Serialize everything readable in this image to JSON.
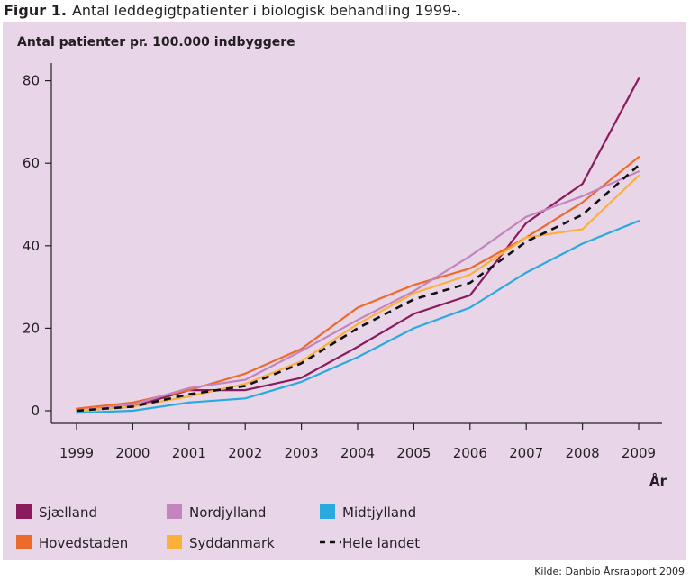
{
  "figure": {
    "label": "Figur 1.",
    "title": "Antal leddegigtpatienter i biologisk behandling 1999-.",
    "source": "Kilde: Danbio Årsrapport 2009"
  },
  "chart_data": {
    "type": "line",
    "ylabel": "Antal patienter pr. 100.000 indbyggere",
    "xlabel": "År",
    "x": [
      "1999",
      "2000",
      "2001",
      "2002",
      "2003",
      "2004",
      "2005",
      "2006",
      "2007",
      "2008",
      "2009"
    ],
    "ylim": [
      -3,
      87
    ],
    "yticks": [
      0,
      20,
      40,
      60,
      80
    ],
    "grid": false,
    "legend_position": "bottom",
    "series": [
      {
        "name": "Sjælland",
        "color": "#8b1a5e",
        "dash": false,
        "values": [
          0,
          1,
          5,
          5,
          8,
          15.5,
          23.5,
          28,
          45.5,
          55,
          80.5
        ]
      },
      {
        "name": "Hovedstaden",
        "color": "#ec6a2b",
        "dash": false,
        "values": [
          0.5,
          2,
          5,
          9,
          15,
          25,
          30.5,
          34.5,
          42,
          50.5,
          61.5
        ]
      },
      {
        "name": "Nordjylland",
        "color": "#c285be",
        "dash": false,
        "values": [
          0,
          1.5,
          5.5,
          7.5,
          14.5,
          22,
          29,
          37.5,
          47,
          52,
          58
        ]
      },
      {
        "name": "Syddanmark",
        "color": "#fbb03b",
        "dash": false,
        "values": [
          0,
          1,
          3.5,
          6.5,
          12,
          21,
          28.5,
          33,
          42,
          44,
          57
        ]
      },
      {
        "name": "Midtjylland",
        "color": "#29a9e0",
        "dash": false,
        "values": [
          -0.5,
          0,
          2,
          3,
          7,
          13,
          20,
          25,
          33.5,
          40.5,
          46
        ]
      },
      {
        "name": "Hele landet",
        "color": "#111111",
        "dash": true,
        "values": [
          0,
          1,
          4,
          6,
          11.5,
          20,
          27,
          31,
          41,
          47.5,
          59.5
        ]
      }
    ],
    "legend_order": [
      "Sjælland",
      "Nordjylland",
      "Midtjylland",
      "Hovedstaden",
      "Syddanmark",
      "Hele landet"
    ]
  }
}
